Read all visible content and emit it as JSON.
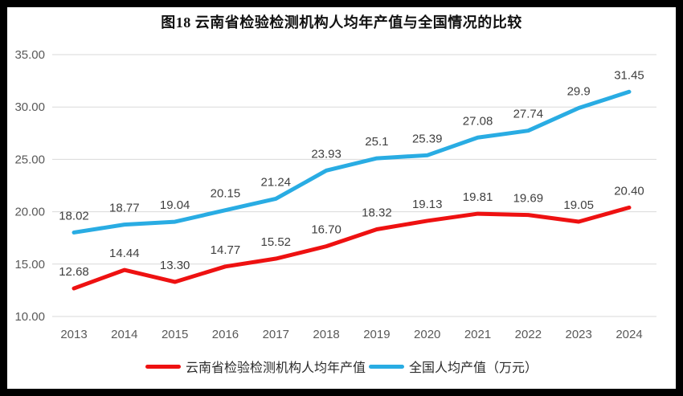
{
  "page": {
    "frame_border_color": "#000000",
    "background_color": "#ffffff"
  },
  "chart_data": {
    "type": "line",
    "title": "图18 云南省检验检测机构人均年产值与全国情况的比较",
    "categories": [
      "2013",
      "2014",
      "2015",
      "2016",
      "2017",
      "2018",
      "2019",
      "2020",
      "2021",
      "2022",
      "2023",
      "2024"
    ],
    "xlabel": "",
    "ylabel": "",
    "ylim": [
      10,
      35
    ],
    "ytick_step": 5,
    "ytick_labels": [
      "10.00",
      "15.00",
      "20.00",
      "25.00",
      "30.00",
      "35.00"
    ],
    "grid": true,
    "legend_position": "bottom",
    "gridline_color": "#d9d9d9",
    "axis_label_color": "#595959",
    "data_label_color": "#3f3f3f",
    "series": [
      {
        "name": "云南省检验检测机构人均年产值",
        "color": "#ee1111",
        "values": [
          12.68,
          14.44,
          13.3,
          14.77,
          15.52,
          16.7,
          18.32,
          19.13,
          19.81,
          19.69,
          19.05,
          20.4
        ],
        "labels": [
          "12.68",
          "14.44",
          "13.30",
          "14.77",
          "15.52",
          "16.70",
          "18.32",
          "19.13",
          "19.81",
          "19.69",
          "19.05",
          "20.40"
        ]
      },
      {
        "name": "全国人均产值（万元）",
        "color": "#29ace3",
        "values": [
          18.02,
          18.77,
          19.04,
          20.15,
          21.24,
          23.93,
          25.1,
          25.39,
          27.08,
          27.74,
          29.9,
          31.45
        ],
        "labels": [
          "18.02",
          "18.77",
          "19.04",
          "20.15",
          "21.24",
          "23.93",
          "25.1",
          "25.39",
          "27.08",
          "27.74",
          "29.9",
          "31.45"
        ]
      }
    ]
  }
}
